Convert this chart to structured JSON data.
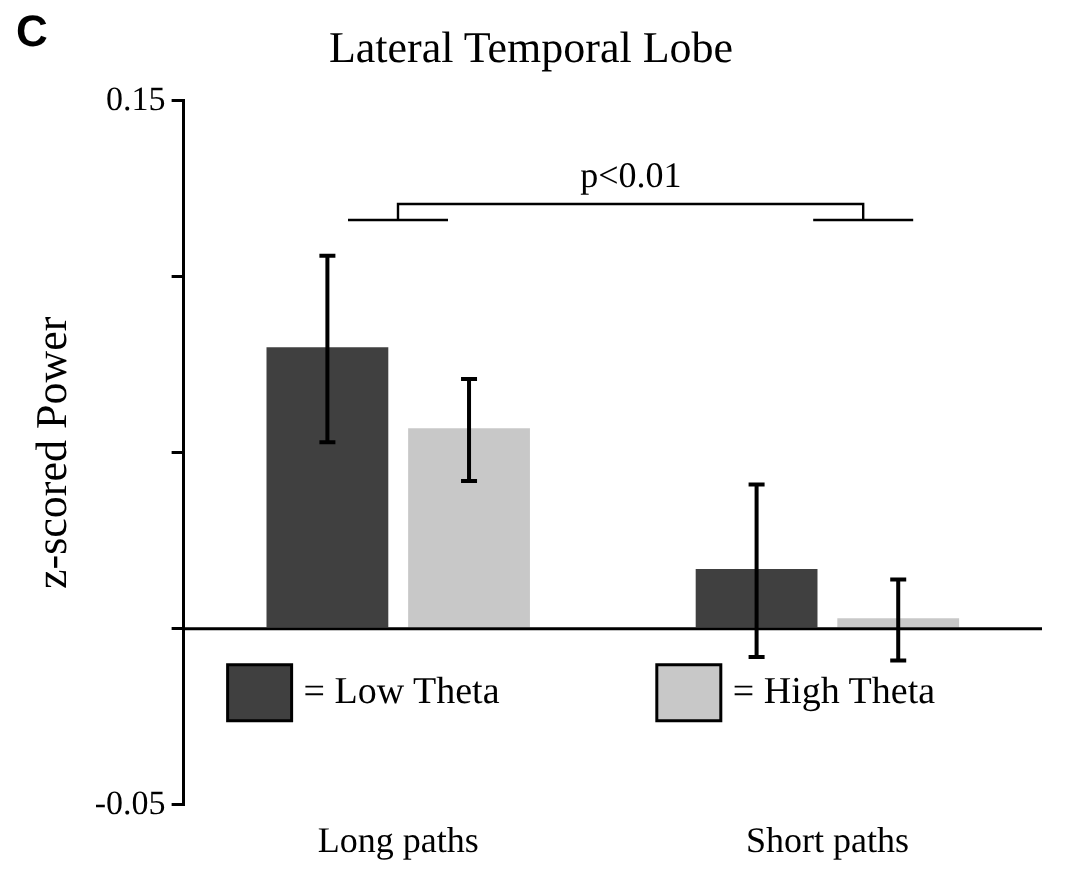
{
  "chart_data": {
    "type": "bar",
    "title": "Lateral Temporal Lobe",
    "ylabel": "z-scored Power",
    "categories": [
      "Long paths",
      "Short paths"
    ],
    "series": [
      {
        "name": "= Low Theta",
        "color": "#404040",
        "values": [
          0.08,
          0.017
        ],
        "errors": [
          [
            0.053,
            0.106
          ],
          [
            -0.008,
            0.041
          ]
        ]
      },
      {
        "name": "= High Theta",
        "color": "#c8c8c8",
        "values": [
          0.057,
          0.003
        ],
        "errors": [
          [
            0.042,
            0.071
          ],
          [
            -0.009,
            0.014
          ]
        ]
      }
    ],
    "ylim": [
      -0.05,
      0.15
    ],
    "yticks": [
      {
        "value": -0.05,
        "label": "-0.05"
      },
      {
        "value": 0,
        "label": null
      },
      {
        "value": 0.05,
        "label": null
      },
      {
        "value": 0.1,
        "label": null
      },
      0.15
    ],
    "ref_lines": [
      {
        "axis": "y",
        "value": 0,
        "color": "#000000"
      }
    ],
    "annotations": [
      "C",
      "p<0.01"
    ],
    "legend": "bottom",
    "grid": false
  }
}
